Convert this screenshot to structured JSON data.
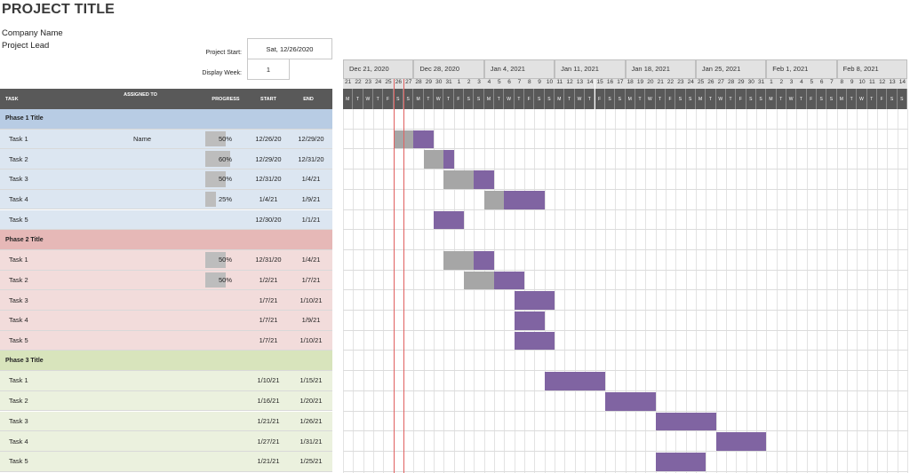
{
  "header": {
    "title": "PROJECT TITLE",
    "company": "Company Name",
    "lead": "Project Lead",
    "project_start_label": "Project Start:",
    "project_start_value": "Sat, 12/26/2020",
    "display_week_label": "Display Week:",
    "display_week_value": "1"
  },
  "columns": {
    "task": "TASK",
    "assigned": "ASSIGNED TO",
    "progress": "PROGRESS",
    "start": "START",
    "end": "END"
  },
  "weeks": [
    "Dec 21, 2020",
    "Dec 28, 2020",
    "Jan 4, 2021",
    "Jan 11, 2021",
    "Jan 18, 2021",
    "Jan 25, 2021",
    "Feb 1, 2021",
    "Feb 8, 2021"
  ],
  "days": [
    "21",
    "22",
    "23",
    "24",
    "25",
    "26",
    "27",
    "28",
    "29",
    "30",
    "31",
    "1",
    "2",
    "3",
    "4",
    "5",
    "6",
    "7",
    "8",
    "9",
    "10",
    "11",
    "12",
    "13",
    "14",
    "15",
    "16",
    "17",
    "18",
    "19",
    "20",
    "21",
    "22",
    "23",
    "24",
    "25",
    "26",
    "27",
    "28",
    "29",
    "30",
    "31",
    "1",
    "2",
    "3",
    "4",
    "5",
    "6",
    "7",
    "8",
    "9",
    "10",
    "11",
    "12",
    "13",
    "14"
  ],
  "day_letters": [
    "M",
    "T",
    "W",
    "T",
    "F",
    "S",
    "S"
  ],
  "colors": {
    "done": "#a6a6a6",
    "remaining": "#8064a2",
    "today_line": "#e06060",
    "phase1": "#b8cce4",
    "phase1_row": "#dce6f1",
    "phase2": "#e6b8b7",
    "phase2_row": "#f2dcdb",
    "phase3": "#d8e4bc",
    "phase3_row": "#ebf1de"
  },
  "phases": [
    {
      "title": "Phase 1 Title",
      "tasks": [
        {
          "name": "Task 1",
          "assigned": "Name",
          "progress": "50%",
          "pct": 50,
          "start": "12/26/20",
          "end": "12/29/20",
          "d0": 5,
          "len": 4
        },
        {
          "name": "Task 2",
          "assigned": "",
          "progress": "60%",
          "pct": 60,
          "start": "12/29/20",
          "end": "12/31/20",
          "d0": 8,
          "len": 3
        },
        {
          "name": "Task 3",
          "assigned": "",
          "progress": "50%",
          "pct": 50,
          "start": "12/31/20",
          "end": "1/4/21",
          "d0": 10,
          "len": 5
        },
        {
          "name": "Task 4",
          "assigned": "",
          "progress": "25%",
          "pct": 25,
          "start": "1/4/21",
          "end": "1/9/21",
          "d0": 14,
          "len": 6
        },
        {
          "name": "Task 5",
          "assigned": "",
          "progress": "",
          "pct": 0,
          "start": "12/30/20",
          "end": "1/1/21",
          "d0": 9,
          "len": 3
        }
      ]
    },
    {
      "title": "Phase 2 Title",
      "tasks": [
        {
          "name": "Task 1",
          "assigned": "",
          "progress": "50%",
          "pct": 50,
          "start": "12/31/20",
          "end": "1/4/21",
          "d0": 10,
          "len": 5
        },
        {
          "name": "Task 2",
          "assigned": "",
          "progress": "50%",
          "pct": 50,
          "start": "1/2/21",
          "end": "1/7/21",
          "d0": 12,
          "len": 6
        },
        {
          "name": "Task 3",
          "assigned": "",
          "progress": "",
          "pct": 0,
          "start": "1/7/21",
          "end": "1/10/21",
          "d0": 17,
          "len": 4
        },
        {
          "name": "Task 4",
          "assigned": "",
          "progress": "",
          "pct": 0,
          "start": "1/7/21",
          "end": "1/9/21",
          "d0": 17,
          "len": 3
        },
        {
          "name": "Task 5",
          "assigned": "",
          "progress": "",
          "pct": 0,
          "start": "1/7/21",
          "end": "1/10/21",
          "d0": 17,
          "len": 4
        }
      ]
    },
    {
      "title": "Phase 3 Title",
      "tasks": [
        {
          "name": "Task 1",
          "assigned": "",
          "progress": "",
          "pct": 0,
          "start": "1/10/21",
          "end": "1/15/21",
          "d0": 20,
          "len": 6
        },
        {
          "name": "Task 2",
          "assigned": "",
          "progress": "",
          "pct": 0,
          "start": "1/16/21",
          "end": "1/20/21",
          "d0": 26,
          "len": 5
        },
        {
          "name": "Task 3",
          "assigned": "",
          "progress": "",
          "pct": 0,
          "start": "1/21/21",
          "end": "1/26/21",
          "d0": 31,
          "len": 6
        },
        {
          "name": "Task 4",
          "assigned": "",
          "progress": "",
          "pct": 0,
          "start": "1/27/21",
          "end": "1/31/21",
          "d0": 37,
          "len": 5
        },
        {
          "name": "Task 5",
          "assigned": "",
          "progress": "",
          "pct": 0,
          "start": "1/21/21",
          "end": "1/25/21",
          "d0": 31,
          "len": 5
        }
      ]
    }
  ]
}
